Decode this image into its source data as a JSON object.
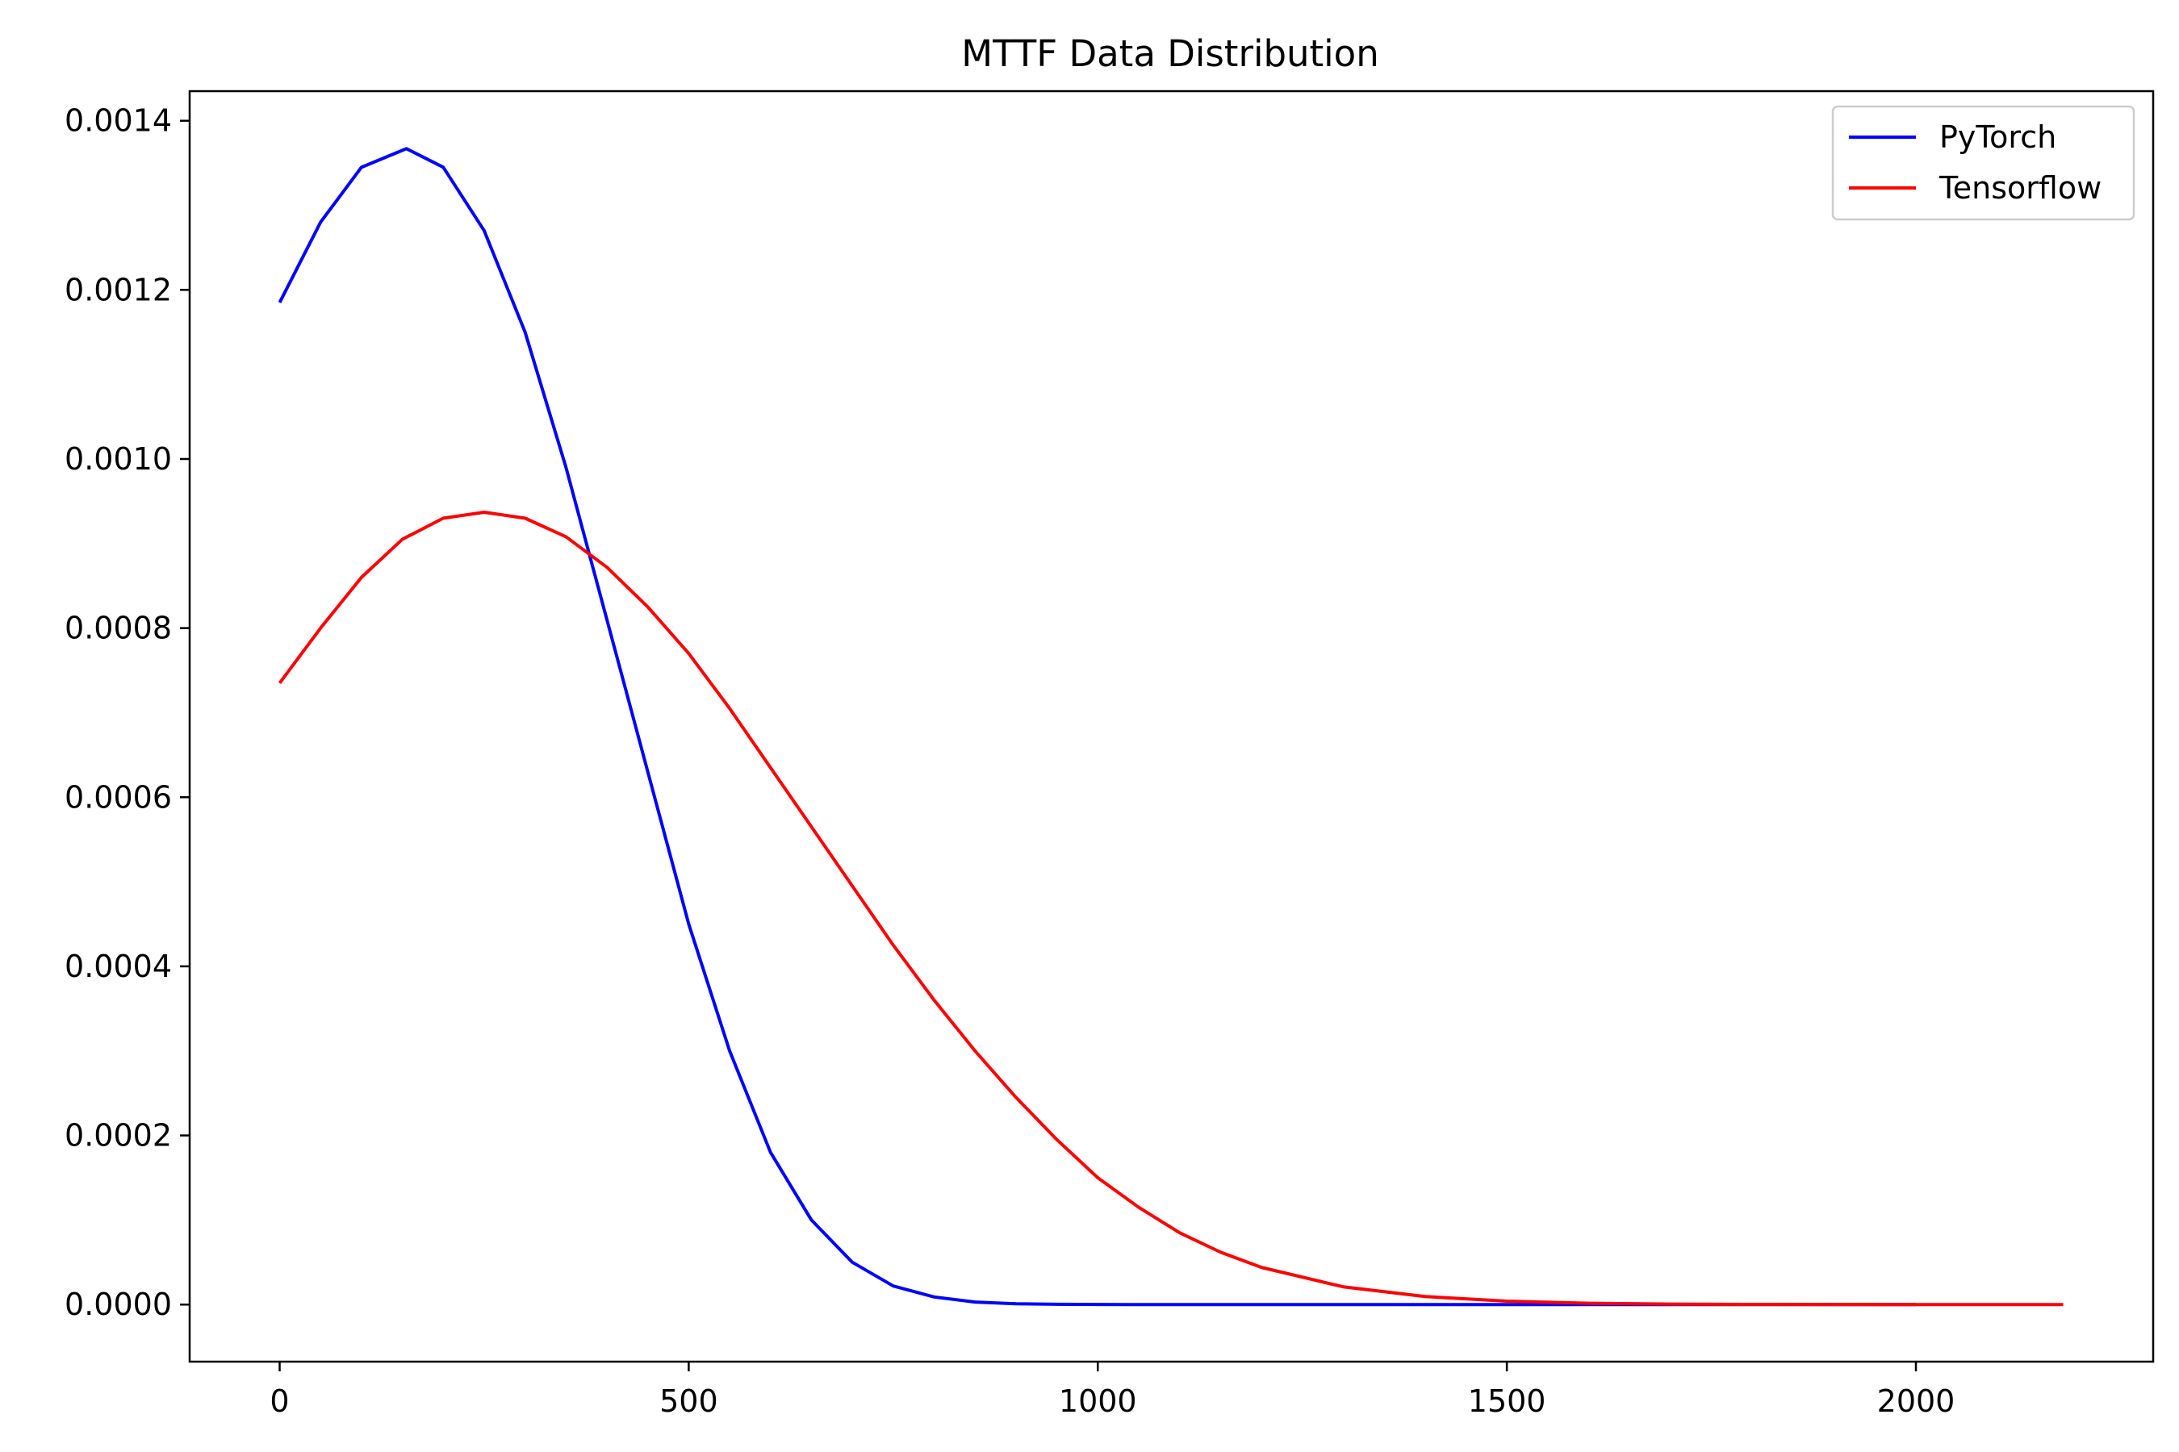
{
  "chart_data": {
    "type": "line",
    "title": "MTTF Data Distribution",
    "xlabel": "",
    "ylabel": "",
    "xlim": [
      -110,
      2290
    ],
    "ylim": [
      -6.75e-05,
      0.001435
    ],
    "xticks": [
      0,
      500,
      1000,
      1500,
      2000
    ],
    "xtick_labels": [
      "0",
      "500",
      "1000",
      "1500",
      "2000"
    ],
    "yticks": [
      0.0,
      0.0002,
      0.0004,
      0.0006,
      0.0008,
      0.001,
      0.0012,
      0.0014
    ],
    "ytick_labels": [
      "0.0000",
      "0.0002",
      "0.0004",
      "0.0006",
      "0.0008",
      "0.0010",
      "0.0012",
      "0.0014"
    ],
    "grid": false,
    "legend_position": "top-right",
    "series": [
      {
        "name": "PyTorch",
        "color": "#0000ff",
        "x": [
          0,
          50,
          100,
          155,
          200,
          250,
          300,
          350,
          400,
          450,
          500,
          550,
          600,
          650,
          700,
          750,
          800,
          850,
          900,
          950,
          1000,
          1050,
          1100,
          1150,
          1200,
          1300,
          1400,
          1500,
          1600,
          1700,
          1800,
          1900,
          2000
        ],
        "y": [
          0.001185,
          0.00128,
          0.001345,
          0.001367,
          0.001345,
          0.00127,
          0.00115,
          0.00099,
          0.00081,
          0.00063,
          0.00045,
          0.0003,
          0.00018,
          0.0001,
          5e-05,
          2.2e-05,
          9e-06,
          3e-06,
          1e-06,
          3e-07,
          1e-07,
          0,
          0,
          0,
          0,
          0,
          0,
          0,
          0,
          0,
          0,
          0,
          0
        ]
      },
      {
        "name": "Tensorflow",
        "color": "#ff0000",
        "x": [
          0,
          50,
          100,
          150,
          200,
          250,
          300,
          350,
          400,
          450,
          500,
          550,
          600,
          650,
          700,
          750,
          800,
          850,
          900,
          950,
          1000,
          1050,
          1100,
          1150,
          1200,
          1300,
          1400,
          1500,
          1600,
          1700,
          1800,
          1900,
          2000,
          2100,
          2180
        ],
        "y": [
          0.000735,
          0.0008,
          0.00086,
          0.000905,
          0.00093,
          0.000937,
          0.00093,
          0.000908,
          0.000872,
          0.000825,
          0.00077,
          0.000705,
          0.000635,
          0.000565,
          0.000495,
          0.000425,
          0.00036,
          0.0003,
          0.000245,
          0.000195,
          0.00015,
          0.000115,
          8.5e-05,
          6.2e-05,
          4.4e-05,
          2.1e-05,
          9.5e-06,
          4e-06,
          1.6e-06,
          6e-07,
          2e-07,
          7e-08,
          2e-08,
          0,
          0
        ]
      }
    ]
  }
}
